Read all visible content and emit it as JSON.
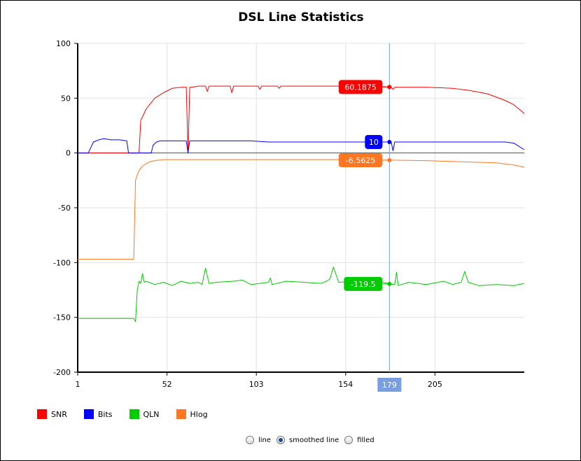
{
  "chart_data": {
    "type": "line",
    "title": "DSL Line Statistics",
    "xlabel": "",
    "ylabel": "",
    "xlim": [
      1,
      256
    ],
    "ylim": [
      -200,
      100
    ],
    "xticks": [
      1,
      52,
      103,
      154,
      205
    ],
    "yticks": [
      100,
      50,
      0,
      -50,
      -100,
      -150,
      -200
    ],
    "grid": true,
    "legend_position": "bottom-left",
    "cursor": {
      "x": 179,
      "label": "179"
    },
    "series": [
      {
        "name": "SNR",
        "color": "#ff0000",
        "tooltip": "60.1875",
        "tooltip_value": 60.1875,
        "x": [
          1,
          30,
          36,
          37,
          38,
          40,
          45,
          50,
          55,
          60,
          63,
          64,
          65,
          66,
          70,
          74,
          75,
          76,
          80,
          85,
          88,
          89,
          90,
          100,
          104,
          105,
          106,
          115,
          116,
          117,
          130,
          150,
          160,
          170,
          179,
          180,
          181,
          182,
          200,
          215,
          225,
          235,
          245,
          250,
          256
        ],
        "values": [
          0,
          0,
          0,
          30,
          33,
          40,
          50,
          55,
          59,
          60,
          60,
          0,
          60,
          60,
          61,
          61,
          56,
          61,
          61,
          61,
          61,
          55,
          61,
          61,
          61,
          58,
          61,
          61,
          59,
          61,
          61,
          61,
          61,
          61,
          60.1875,
          60,
          58,
          60,
          60,
          59,
          57,
          54,
          48,
          44,
          36
        ]
      },
      {
        "name": "Bits",
        "color": "#0000ff",
        "tooltip": "10",
        "tooltip_value": 10,
        "x": [
          1,
          7,
          10,
          13,
          16,
          20,
          25,
          29,
          30,
          37,
          38,
          43,
          44,
          46,
          48,
          60,
          63,
          64,
          65,
          66,
          100,
          110,
          140,
          170,
          179,
          180,
          181,
          182,
          183,
          200,
          230,
          245,
          250,
          256
        ],
        "values": [
          0,
          0,
          10,
          12,
          13,
          12,
          12,
          11,
          0,
          0,
          0,
          0,
          7,
          10,
          11,
          11,
          11,
          0,
          11,
          11,
          11,
          10,
          10,
          10,
          10,
          10,
          2,
          10,
          10,
          10,
          10,
          10,
          9,
          3
        ]
      },
      {
        "name": "QLN",
        "color": "#00cc00",
        "tooltip": "-119.5",
        "tooltip_value": -119.5,
        "x": [
          1,
          33,
          34,
          35,
          36,
          37,
          38,
          39,
          40,
          45,
          50,
          55,
          60,
          65,
          70,
          72,
          74,
          76,
          80,
          90,
          95,
          100,
          110,
          111,
          112,
          120,
          130,
          140,
          143,
          145,
          147,
          150,
          160,
          165,
          175,
          179,
          182,
          183,
          184,
          190,
          200,
          210,
          215,
          220,
          222,
          224,
          230,
          240,
          250,
          256
        ],
        "values": [
          -151,
          -151,
          -154,
          -125,
          -117,
          -119,
          -110,
          -118,
          -117,
          -120,
          -118,
          -121,
          -117,
          -119,
          -118,
          -120,
          -105,
          -119,
          -118,
          -117,
          -116,
          -120,
          -118,
          -114,
          -120,
          -117,
          -118,
          -119,
          -117,
          -115,
          -104,
          -118,
          -117,
          -115,
          -118,
          -119.5,
          -120,
          -109,
          -121,
          -118,
          -120,
          -117,
          -120,
          -118,
          -108,
          -118,
          -121,
          -120,
          -121,
          -119
        ]
      },
      {
        "name": "Hlog",
        "color": "#ff7722",
        "tooltip": "-6.5625",
        "tooltip_value": -6.5625,
        "x": [
          1,
          32,
          33,
          34,
          35,
          36,
          38,
          40,
          42,
          45,
          50,
          55,
          60,
          70,
          100,
          130,
          160,
          179,
          200,
          220,
          240,
          250,
          256
        ],
        "values": [
          -97,
          -97,
          -97,
          -25,
          -20,
          -16,
          -12,
          -10,
          -8,
          -7,
          -6,
          -6,
          -6,
          -6,
          -6,
          -6,
          -6,
          -6.5625,
          -7,
          -8,
          -9,
          -11,
          -13
        ]
      }
    ]
  },
  "controls": {
    "modes": [
      {
        "label": "line",
        "checked": false
      },
      {
        "label": "smoothed line",
        "checked": true
      },
      {
        "label": "filled",
        "checked": false
      }
    ]
  }
}
